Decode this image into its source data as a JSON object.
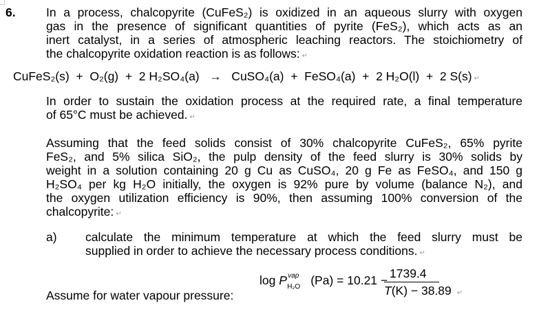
{
  "question_number": "6.",
  "para1": [
    "In a process, chalcopyrite (CuFeS₂) is oxidized in an aqueous slurry with oxygen",
    "gas in the presence of significant quantities of pyrite (FeS₂), which acts as an",
    "inert catalyst, in a series of atmospheric leaching reactors.  The stoichiometry of",
    "the chalcopyrite oxidation reaction is as follows:"
  ],
  "equation": "CuFeS₂(s)  +  O₂(g)  +  2 H₂SO₄(a)   →   CuSO₄(a)  +  FeSO₄(a)  +  2 H₂O(l)  +  2 S(s)",
  "para2": [
    "In order to sustain the oxidation process at the required rate, a final temperature",
    "of 65°C must be achieved."
  ],
  "para3": [
    "Assuming that the feed solids consist of 30% chalcopyrite CuFeS₂, 65% pyrite",
    "FeS₂, and 5% silica SiO₂, the pulp density of the feed slurry is 30% solids by",
    "weight in a solution containing 20 g Cu as CuSO₄, 20 g Fe as FeSO₄, and 150 g",
    "H₂SO₄ per kg H₂O initially, the oxygen is 92% pure by volume (balance N₂), and",
    "the oxygen utilization efficiency is 90%, then assuming 100% conversion of the",
    "chalcopyrite:"
  ],
  "part_a": {
    "label": "a)",
    "lines": [
      "calculate the minimum temperature at which the feed slurry must be",
      "supplied in order to achieve the necessary process conditions."
    ]
  },
  "assume_text": "Assume for water vapour pressure:",
  "formula": {
    "lhs_log": "log",
    "lhs_P": "P",
    "lhs_sup": "vap",
    "lhs_sub": "H₂O",
    "lhs_unit": "(Pa) = 10.21 −",
    "numerator": "1739.4",
    "den_T": "T",
    "den_rest": "(K) − 38.89"
  },
  "return_mark": "↵"
}
